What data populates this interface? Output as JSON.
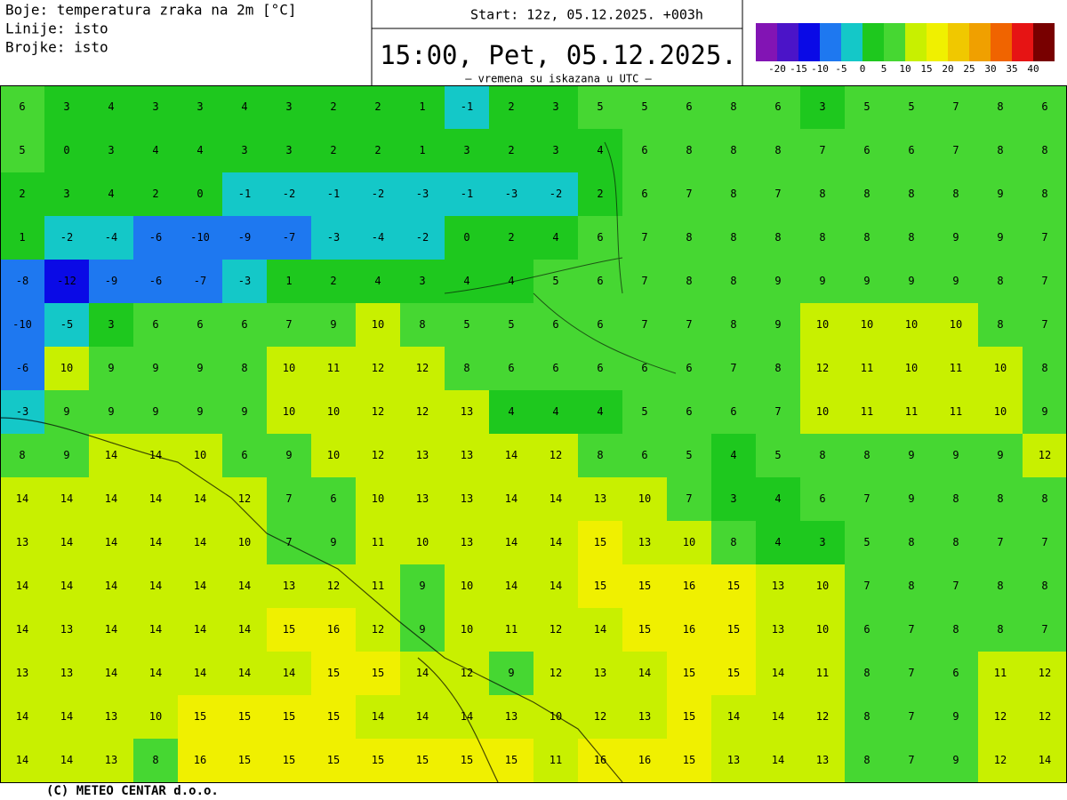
{
  "header": {
    "info_lines": [
      "Boje: temperatura zraka na 2m [°C]",
      "Linije: isto",
      "Brojke: isto"
    ],
    "start": "Start: 12z, 05.12.2025.   +003h",
    "valid_time": "15:00, Pet, 05.12.2025.",
    "note": "– vremena su iskazana u UTC –"
  },
  "colorbar": {
    "bounds": [
      -20,
      -15,
      -10,
      -5,
      0,
      5,
      10,
      15,
      20,
      25,
      30,
      35,
      40
    ],
    "colors": [
      "#8214b4",
      "#4b14c8",
      "#0a0ae6",
      "#1e78f0",
      "#14c8c8",
      "#1ec81e",
      "#46d732",
      "#c8f000",
      "#f0f000",
      "#f0c800",
      "#f0a000",
      "#f06400",
      "#e61414",
      "#780000"
    ]
  },
  "map": {
    "values": [
      [
        6,
        3,
        4,
        3,
        3,
        4,
        3,
        2,
        2,
        1,
        -1,
        2,
        3,
        5,
        5,
        6,
        8,
        6,
        3,
        5,
        5,
        7,
        8,
        6
      ],
      [
        5,
        0,
        3,
        4,
        4,
        3,
        3,
        2,
        2,
        1,
        3,
        2,
        3,
        4,
        6,
        8,
        8,
        8,
        7,
        6,
        6,
        7,
        8,
        8
      ],
      [
        2,
        3,
        4,
        2,
        0,
        -1,
        -2,
        -1,
        -2,
        -3,
        -1,
        -3,
        -2,
        2,
        6,
        7,
        8,
        7,
        8,
        8,
        8,
        8,
        9,
        8
      ],
      [
        1,
        -2,
        -4,
        -6,
        -10,
        -9,
        -7,
        -3,
        -4,
        -2,
        0,
        2,
        4,
        6,
        7,
        8,
        8,
        8,
        8,
        8,
        8,
        9,
        9,
        7
      ],
      [
        -8,
        -12,
        -9,
        -6,
        -7,
        -3,
        1,
        2,
        4,
        3,
        4,
        4,
        5,
        6,
        7,
        8,
        8,
        9,
        9,
        9,
        9,
        9,
        8,
        7
      ],
      [
        -10,
        -5,
        3,
        6,
        6,
        6,
        7,
        9,
        10,
        8,
        5,
        5,
        6,
        6,
        7,
        7,
        8,
        9,
        10,
        10,
        10,
        10,
        8,
        7
      ],
      [
        -6,
        10,
        9,
        9,
        9,
        8,
        10,
        11,
        12,
        12,
        8,
        6,
        6,
        6,
        6,
        6,
        7,
        8,
        12,
        11,
        10,
        11,
        10,
        8
      ],
      [
        -3,
        9,
        9,
        9,
        9,
        9,
        10,
        10,
        12,
        12,
        13,
        4,
        4,
        4,
        5,
        6,
        6,
        7,
        10,
        11,
        11,
        11,
        10,
        9
      ],
      [
        8,
        9,
        14,
        14,
        10,
        6,
        9,
        10,
        12,
        13,
        13,
        14,
        12,
        8,
        6,
        5,
        4,
        5,
        8,
        8,
        9,
        9,
        9,
        12
      ],
      [
        14,
        14,
        14,
        14,
        14,
        12,
        7,
        6,
        10,
        13,
        13,
        14,
        14,
        13,
        10,
        7,
        3,
        4,
        6,
        7,
        9,
        8,
        8,
        8
      ],
      [
        13,
        14,
        14,
        14,
        14,
        10,
        7,
        9,
        11,
        10,
        13,
        14,
        14,
        15,
        13,
        10,
        8,
        4,
        3,
        5,
        8,
        8,
        7,
        7
      ],
      [
        14,
        14,
        14,
        14,
        14,
        14,
        13,
        12,
        11,
        9,
        10,
        14,
        14,
        15,
        15,
        16,
        15,
        13,
        10,
        7,
        8,
        7,
        8,
        8
      ],
      [
        14,
        13,
        14,
        14,
        14,
        14,
        15,
        16,
        12,
        9,
        10,
        11,
        12,
        14,
        15,
        16,
        15,
        13,
        10,
        6,
        7,
        8,
        8,
        7
      ],
      [
        13,
        13,
        14,
        14,
        14,
        14,
        14,
        15,
        15,
        14,
        12,
        9,
        12,
        13,
        14,
        15,
        15,
        14,
        11,
        8,
        7,
        6,
        11,
        12
      ],
      [
        14,
        14,
        13,
        10,
        15,
        15,
        15,
        15,
        14,
        14,
        14,
        13,
        10,
        12,
        13,
        15,
        14,
        14,
        12,
        8,
        7,
        9,
        12,
        12
      ],
      [
        14,
        14,
        13,
        8,
        16,
        15,
        15,
        15,
        15,
        15,
        15,
        15,
        11,
        16,
        16,
        15,
        13,
        14,
        13,
        8,
        7,
        9,
        12,
        14
      ]
    ]
  },
  "footer": "(C) METEO CENTAR d.o.o."
}
